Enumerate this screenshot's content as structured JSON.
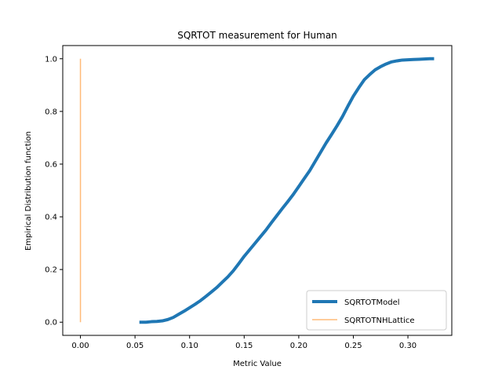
{
  "chart_data": {
    "type": "line",
    "title": "SQRTOT measurement for Human",
    "xlabel": "Metric Value",
    "ylabel": "Empirical Distribution function",
    "xlim": [
      -0.0162,
      0.3402
    ],
    "ylim": [
      -0.05,
      1.05
    ],
    "xticks": [
      {
        "value": 0.0,
        "label": "0.00"
      },
      {
        "value": 0.05,
        "label": "0.05"
      },
      {
        "value": 0.1,
        "label": "0.10"
      },
      {
        "value": 0.15,
        "label": "0.15"
      },
      {
        "value": 0.2,
        "label": "0.20"
      },
      {
        "value": 0.25,
        "label": "0.25"
      },
      {
        "value": 0.3,
        "label": "0.30"
      }
    ],
    "yticks": [
      {
        "value": 0.0,
        "label": "0.0"
      },
      {
        "value": 0.2,
        "label": "0.2"
      },
      {
        "value": 0.4,
        "label": "0.4"
      },
      {
        "value": 0.6,
        "label": "0.6"
      },
      {
        "value": 0.8,
        "label": "0.8"
      },
      {
        "value": 1.0,
        "label": "1.0"
      }
    ],
    "grid": false,
    "legend_position": "lower-right",
    "series": [
      {
        "name": "SQRTOTModel",
        "color": "#1f77b4",
        "linewidth": "thick",
        "x": [
          0.054,
          0.06,
          0.065,
          0.07,
          0.075,
          0.08,
          0.085,
          0.09,
          0.095,
          0.1,
          0.105,
          0.11,
          0.115,
          0.12,
          0.125,
          0.13,
          0.135,
          0.14,
          0.145,
          0.15,
          0.155,
          0.16,
          0.165,
          0.17,
          0.175,
          0.18,
          0.185,
          0.19,
          0.195,
          0.2,
          0.205,
          0.21,
          0.215,
          0.22,
          0.225,
          0.23,
          0.235,
          0.24,
          0.245,
          0.25,
          0.255,
          0.26,
          0.265,
          0.27,
          0.275,
          0.28,
          0.285,
          0.29,
          0.295,
          0.3,
          0.305,
          0.31,
          0.315,
          0.32,
          0.324
        ],
        "y": [
          0.0,
          0.0,
          0.002,
          0.003,
          0.005,
          0.01,
          0.018,
          0.03,
          0.042,
          0.055,
          0.068,
          0.082,
          0.098,
          0.115,
          0.132,
          0.152,
          0.172,
          0.195,
          0.222,
          0.25,
          0.275,
          0.3,
          0.325,
          0.35,
          0.378,
          0.405,
          0.432,
          0.458,
          0.485,
          0.515,
          0.545,
          0.575,
          0.61,
          0.645,
          0.68,
          0.712,
          0.745,
          0.78,
          0.82,
          0.858,
          0.89,
          0.92,
          0.94,
          0.958,
          0.97,
          0.98,
          0.988,
          0.992,
          0.995,
          0.996,
          0.997,
          0.998,
          0.999,
          1.0,
          1.0
        ]
      },
      {
        "name": "SQRTOTNHLattice",
        "color": "#ffbb78",
        "linewidth": "thin",
        "x": [
          0.0,
          0.0
        ],
        "y": [
          0.0,
          1.0
        ]
      }
    ]
  }
}
